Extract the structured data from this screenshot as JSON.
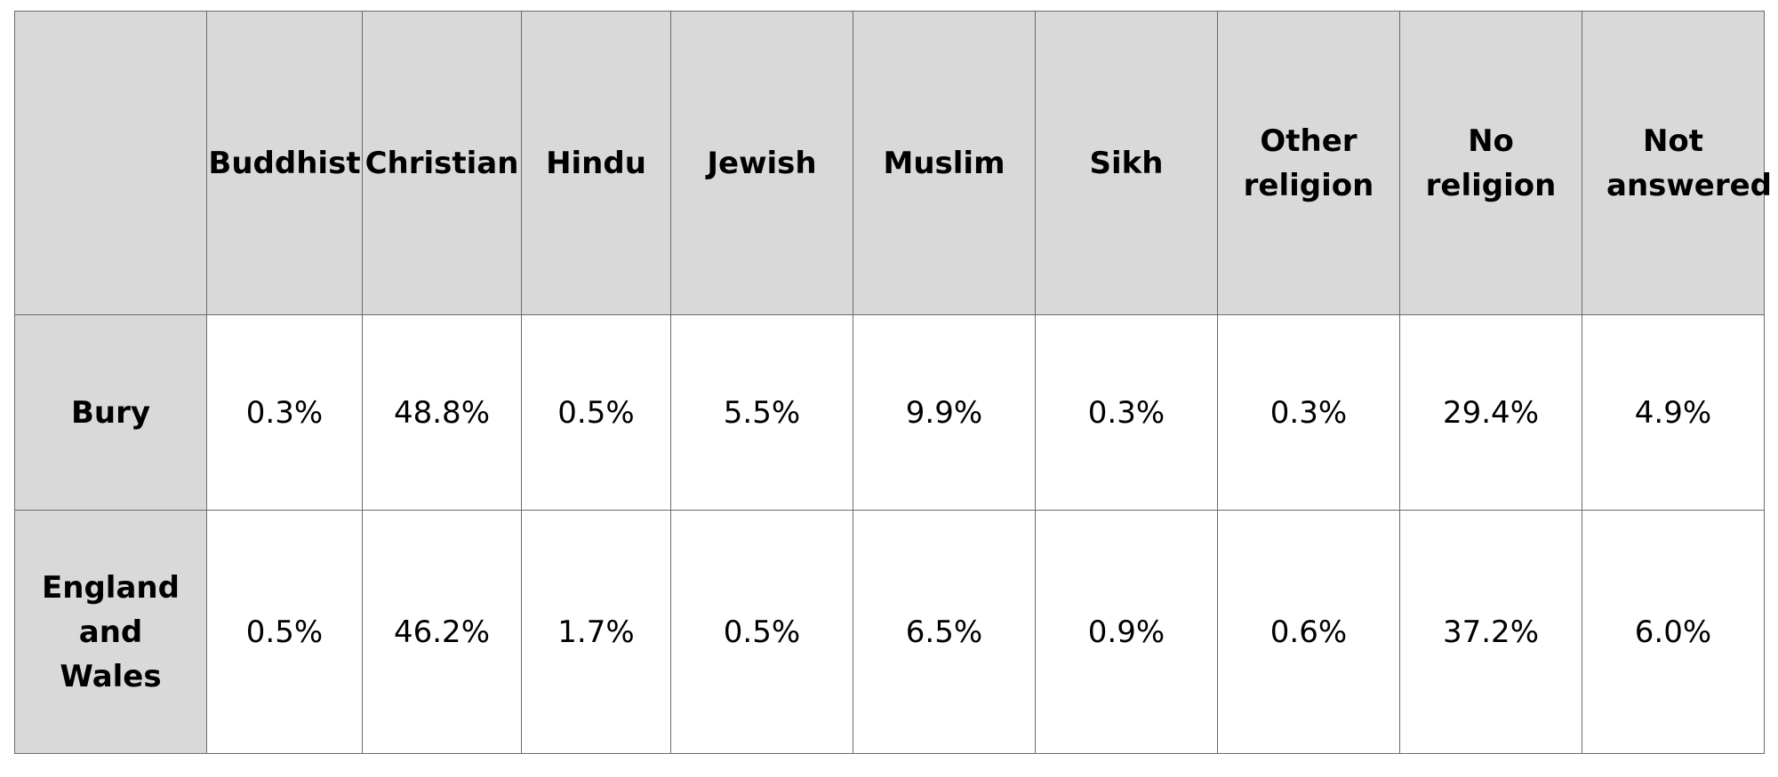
{
  "table": {
    "corner": "",
    "columns": [
      "Buddhist",
      "Christian",
      "Hindu",
      "Jewish",
      "Muslim",
      "Sikh",
      "Other religion",
      "No religion",
      "Not answered"
    ],
    "rows": [
      {
        "label": "Bury",
        "values": [
          "0.3%",
          "48.8%",
          "0.5%",
          "5.5%",
          "9.9%",
          "0.3%",
          "0.3%",
          "29.4%",
          "4.9%"
        ]
      },
      {
        "label": "England and Wales",
        "values": [
          "0.5%",
          "46.2%",
          "1.7%",
          "0.5%",
          "6.5%",
          "0.9%",
          "0.6%",
          "37.2%",
          "6.0%"
        ]
      }
    ]
  },
  "colors": {
    "header_background": "#d9d9d9",
    "cell_background": "#ffffff",
    "border": "#6b6b6b"
  }
}
